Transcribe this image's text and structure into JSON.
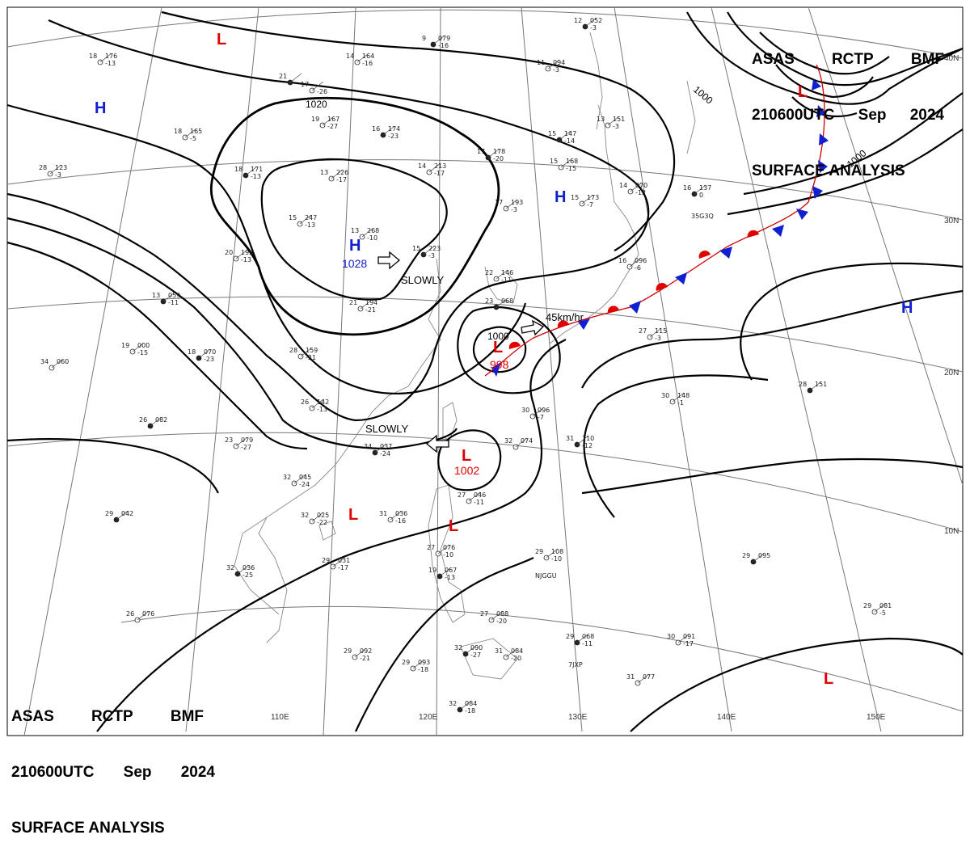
{
  "header": {
    "line1": [
      "ASAS",
      "RCTP",
      "BMF"
    ],
    "line2": [
      "210600UTC",
      "Sep",
      "2024"
    ],
    "line3": "SURFACE ANALYSIS"
  },
  "centers": [
    {
      "id": "L-northwest",
      "type": "L",
      "color": "#e00000"
    },
    {
      "id": "H-west",
      "type": "H",
      "color": "#1020d0"
    },
    {
      "id": "H-siberia",
      "type": "H",
      "color": "#1020d0",
      "pressure": "1028",
      "motion": "SLOWLY"
    },
    {
      "id": "H-japan-north",
      "type": "H",
      "color": "#1020d0"
    },
    {
      "id": "L-okhotsk",
      "type": "L",
      "color": "#e00000"
    },
    {
      "id": "L-typhoon",
      "type": "L",
      "color": "#e00000",
      "pressure": "998",
      "motion": "45km/hr"
    },
    {
      "id": "L-luzon-strait",
      "type": "L",
      "color": "#e00000",
      "pressure": "1002",
      "motion": "SLOWLY"
    },
    {
      "id": "L-south-china-sea",
      "type": "L",
      "color": "#e00000"
    },
    {
      "id": "L-luzon-west",
      "type": "L",
      "color": "#e00000"
    },
    {
      "id": "H-pacific",
      "type": "H",
      "color": "#1020d0"
    },
    {
      "id": "L-pacific-south",
      "type": "L",
      "color": "#e00000"
    }
  ],
  "isobar_labels": [
    "1020",
    "1000",
    "1000",
    "1000"
  ],
  "grid_labels": {
    "lon": [
      "110E",
      "120E",
      "130E",
      "140E",
      "150E"
    ],
    "lat": [
      "40N",
      "30N",
      "20N",
      "10N"
    ]
  },
  "station_codes": [
    "35G3Q",
    "NJGGU",
    "7JXP"
  ],
  "stations": [
    {
      "t": "9",
      "p": "079",
      "tend": "-16"
    },
    {
      "t": "14",
      "p": "164",
      "tend": "-16"
    },
    {
      "t": "18",
      "p": "176",
      "tend": "-13"
    },
    {
      "t": "21",
      "p": "",
      "tend": ""
    },
    {
      "t": "17",
      "p": "",
      "tend": "-26"
    },
    {
      "t": "19",
      "p": "167",
      "tend": "-27"
    },
    {
      "t": "16",
      "p": "174",
      "tend": "-23"
    },
    {
      "t": "18",
      "p": "165",
      "tend": "-5"
    },
    {
      "t": "28",
      "p": "123",
      "tend": "-3"
    },
    {
      "t": "18",
      "p": "171",
      "tend": "-13"
    },
    {
      "t": "13",
      "p": "226",
      "tend": "-17"
    },
    {
      "t": "14",
      "p": "213",
      "tend": "-17"
    },
    {
      "t": "17",
      "p": "178",
      "tend": "-20"
    },
    {
      "t": "15",
      "p": "247",
      "tend": "-13"
    },
    {
      "t": "13",
      "p": "268",
      "tend": "-10"
    },
    {
      "t": "15",
      "p": "223",
      "tend": "-3"
    },
    {
      "t": "17",
      "p": "193",
      "tend": "-3"
    },
    {
      "t": "20",
      "p": "195",
      "tend": "-13"
    },
    {
      "t": "13",
      "p": "059",
      "tend": "-11"
    },
    {
      "t": "21",
      "p": "194",
      "tend": "-21"
    },
    {
      "t": "19",
      "p": "000",
      "tend": "-15"
    },
    {
      "t": "18",
      "p": "070",
      "tend": "-23"
    },
    {
      "t": "28",
      "p": "159",
      "tend": "-21"
    },
    {
      "t": "34",
      "p": "060",
      "tend": ""
    },
    {
      "t": "26",
      "p": "082",
      "tend": ""
    },
    {
      "t": "26",
      "p": "142",
      "tend": "-13"
    },
    {
      "t": "23",
      "p": "079",
      "tend": "-27"
    },
    {
      "t": "34",
      "p": "037",
      "tend": "-24"
    },
    {
      "t": "32",
      "p": "045",
      "tend": "-24"
    },
    {
      "t": "32",
      "p": "025",
      "tend": "-22"
    },
    {
      "t": "29",
      "p": "042",
      "tend": ""
    },
    {
      "t": "31",
      "p": "036",
      "tend": "-16"
    },
    {
      "t": "29",
      "p": "031",
      "tend": "-17"
    },
    {
      "t": "32",
      "p": "036",
      "tend": "-25"
    },
    {
      "t": "26",
      "p": "076",
      "tend": ""
    },
    {
      "t": "27",
      "p": "076",
      "tend": "-10"
    },
    {
      "t": "19",
      "p": "067",
      "tend": "-13"
    },
    {
      "t": "29",
      "p": "092",
      "tend": "-21"
    },
    {
      "t": "29",
      "p": "093",
      "tend": "-18"
    },
    {
      "t": "32",
      "p": "090",
      "tend": "-27"
    },
    {
      "t": "31",
      "p": "084",
      "tend": "-20"
    },
    {
      "t": "27",
      "p": "088",
      "tend": "-20"
    },
    {
      "t": "32",
      "p": "084",
      "tend": "-18"
    },
    {
      "t": "27",
      "p": "046",
      "tend": "-11"
    },
    {
      "t": "32",
      "p": "074",
      "tend": ""
    },
    {
      "t": "31",
      "p": "110",
      "tend": "-12"
    },
    {
      "t": "30",
      "p": "096",
      "tend": "-7"
    },
    {
      "t": "29",
      "p": "108",
      "tend": "-10"
    },
    {
      "t": "29",
      "p": "068",
      "tend": "-11"
    },
    {
      "t": "30",
      "p": "091",
      "tend": "-17"
    },
    {
      "t": "31",
      "p": "077",
      "tend": ""
    },
    {
      "t": "29",
      "p": "095",
      "tend": ""
    },
    {
      "t": "29",
      "p": "081",
      "tend": "-5"
    },
    {
      "t": "30",
      "p": "148",
      "tend": "-1"
    },
    {
      "t": "28",
      "p": "151",
      "tend": ""
    },
    {
      "t": "27",
      "p": "115",
      "tend": "-3"
    },
    {
      "t": "16",
      "p": "096",
      "tend": "-6"
    },
    {
      "t": "16",
      "p": "137",
      "tend": "0"
    },
    {
      "t": "15",
      "p": "173",
      "tend": "-7"
    },
    {
      "t": "15",
      "p": "168",
      "tend": "-15"
    },
    {
      "t": "15",
      "p": "147",
      "tend": "-14"
    },
    {
      "t": "13",
      "p": "151",
      "tend": "-3"
    },
    {
      "t": "11",
      "p": "094",
      "tend": "-3"
    },
    {
      "t": "12",
      "p": "052",
      "tend": "-3"
    },
    {
      "t": "14",
      "p": "070",
      "tend": "-12"
    },
    {
      "t": "22",
      "p": "146",
      "tend": "-11"
    },
    {
      "t": "23",
      "p": "068",
      "tend": ""
    }
  ]
}
